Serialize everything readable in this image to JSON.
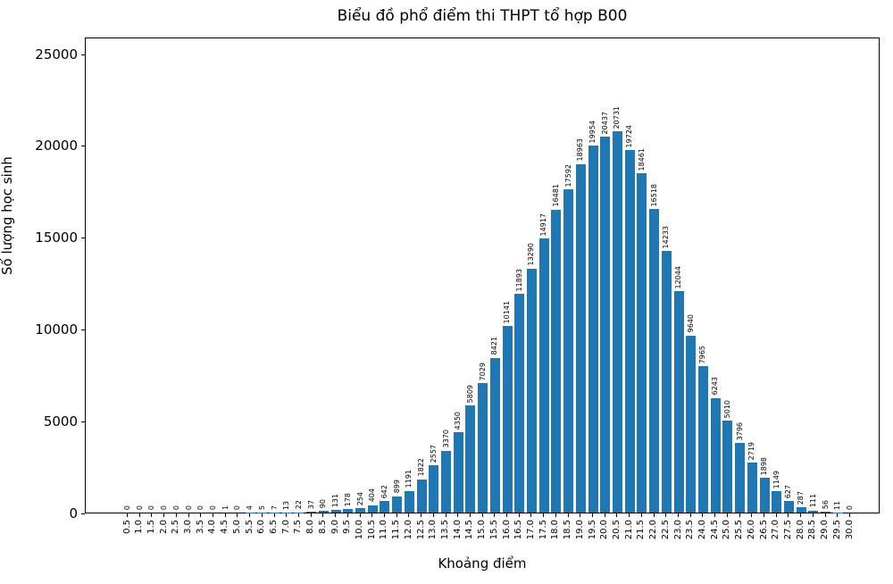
{
  "chart_data": {
    "type": "bar",
    "title": "Biểu đồ phổ điểm thi THPT tổ hợp B00",
    "xlabel": "Khoảng điểm",
    "ylabel": "Số lượng học sinh",
    "categories": [
      "0.5",
      "1.0",
      "1.5",
      "2.0",
      "2.5",
      "3.0",
      "3.5",
      "4.0",
      "4.5",
      "5.0",
      "5.5",
      "6.0",
      "6.5",
      "7.0",
      "7.5",
      "8.0",
      "8.5",
      "9.0",
      "9.5",
      "10.0",
      "10.5",
      "11.0",
      "11.5",
      "12.0",
      "12.5",
      "13.0",
      "13.5",
      "14.0",
      "14.5",
      "15.0",
      "15.5",
      "16.0",
      "16.5",
      "17.0",
      "17.5",
      "18.0",
      "18.5",
      "19.0",
      "19.5",
      "20.0",
      "20.5",
      "21.0",
      "21.5",
      "22.0",
      "22.5",
      "23.0",
      "23.5",
      "24.0",
      "24.5",
      "25.0",
      "25.5",
      "26.0",
      "26.5",
      "27.0",
      "27.5",
      "28.0",
      "28.5",
      "29.0",
      "29.5",
      "30.0"
    ],
    "values": [
      0,
      0,
      0,
      0,
      0,
      0,
      0,
      0,
      1,
      0,
      4,
      5,
      7,
      13,
      22,
      37,
      90,
      131,
      178,
      254,
      404,
      642,
      899,
      1191,
      1822,
      2557,
      3370,
      4350,
      5809,
      7029,
      8421,
      10141,
      11893,
      13290,
      14917,
      16481,
      17592,
      18963,
      19954,
      20437,
      20731,
      19724,
      18461,
      16518,
      14233,
      12044,
      9640,
      7965,
      6243,
      5010,
      3796,
      2719,
      1898,
      1149,
      627,
      287,
      111,
      56,
      11,
      0
    ],
    "yticks": [
      0,
      5000,
      10000,
      15000,
      20000,
      25000
    ],
    "ylim": [
      0,
      25900
    ],
    "bar_color": "#1f77b4",
    "grid": false,
    "legend": null,
    "value_labels_shown": true
  }
}
